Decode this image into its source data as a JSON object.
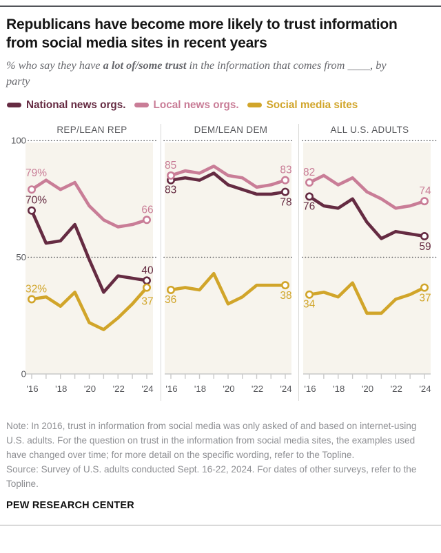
{
  "header": {
    "title": "Republicans have become more likely to trust information from social media sites in recent years",
    "subtitle": {
      "pre": "% who say they have ",
      "bold": "a lot of/some trust",
      "post": " in the information that comes from ____, by party"
    }
  },
  "legend": [
    {
      "label": "National news orgs.",
      "color": "#652b42"
    },
    {
      "label": "Local news orgs.",
      "color": "#c97d97"
    },
    {
      "label": "Social media sites",
      "color": "#d1a52a"
    }
  ],
  "chart_data": {
    "type": "line",
    "years": [
      "'16",
      "'17",
      "'18",
      "'19",
      "'20",
      "'21",
      "'22",
      "'23",
      "'24"
    ],
    "x_tick_labels": [
      "'16",
      "'18",
      "'20",
      "'22",
      "'24"
    ],
    "ylim": [
      0,
      100
    ],
    "yticks": [
      100,
      50,
      0
    ],
    "grid": "dotted horizontal lines at 100 and 50",
    "plot_bg": "#f7f4ed",
    "colors": {
      "national": "#652b42",
      "local": "#c97d97",
      "social": "#d1a52a"
    },
    "panels": [
      {
        "title": "REP/LEAN REP",
        "series": [
          {
            "name": "National news orgs.",
            "color": "#652b42",
            "values": [
              70,
              56,
              57,
              64,
              49,
              35,
              42,
              41,
              40
            ],
            "start_label": "70%",
            "end_label": "40",
            "start_pos": "above",
            "end_pos": "above"
          },
          {
            "name": "Local news orgs.",
            "color": "#c97d97",
            "values": [
              79,
              83,
              79,
              82,
              72,
              66,
              63,
              64,
              66
            ],
            "start_label": "79%",
            "end_label": "66",
            "start_pos": "above",
            "end_pos": "above",
            "start_dy": -19
          },
          {
            "name": "Social media sites",
            "color": "#d1a52a",
            "values": [
              32,
              33,
              29,
              35,
              22,
              19,
              24,
              30,
              37
            ],
            "start_label": "32%",
            "end_label": "37",
            "start_pos": "above",
            "end_pos": "below",
            "end_dy": 25
          }
        ]
      },
      {
        "title": "DEM/LEAN DEM",
        "series": [
          {
            "name": "National news orgs.",
            "color": "#652b42",
            "values": [
              83,
              84,
              83,
              86,
              81,
              79,
              77,
              77,
              78
            ],
            "start_label": "83",
            "end_label": "78",
            "start_pos": "below",
            "end_pos": "below"
          },
          {
            "name": "Local news orgs.",
            "color": "#c97d97",
            "values": [
              85,
              87,
              86,
              89,
              85,
              84,
              80,
              81,
              83
            ],
            "start_label": "85",
            "end_label": "83",
            "start_pos": "above",
            "end_pos": "above"
          },
          {
            "name": "Social media sites",
            "color": "#d1a52a",
            "values": [
              36,
              37,
              36,
              43,
              30,
              33,
              38,
              38,
              38
            ],
            "start_label": "36",
            "end_label": "38",
            "start_pos": "below",
            "end_pos": "below"
          }
        ]
      },
      {
        "title": "ALL U.S. ADULTS",
        "series": [
          {
            "name": "National news orgs.",
            "color": "#652b42",
            "values": [
              76,
              72,
              71,
              75,
              65,
              58,
              61,
              60,
              59
            ],
            "start_label": "76",
            "end_label": "59",
            "start_pos": "below",
            "end_pos": "below"
          },
          {
            "name": "Local news orgs.",
            "color": "#c97d97",
            "values": [
              82,
              85,
              81,
              84,
              78,
              75,
              71,
              72,
              74
            ],
            "start_label": "82",
            "end_label": "74",
            "start_pos": "above",
            "end_pos": "above"
          },
          {
            "name": "Social media sites",
            "color": "#d1a52a",
            "values": [
              34,
              35,
              33,
              39,
              26,
              26,
              32,
              34,
              37
            ],
            "start_label": "34",
            "end_label": "37",
            "start_pos": "below",
            "end_pos": "below"
          }
        ]
      }
    ]
  },
  "notes": {
    "note": "Note: In 2016, trust in information from social media was only asked of and based on internet-using U.S. adults. For the question on trust in the information from social media sites, the examples used have changed over time; for more detail on the specific wording, refer to the Topline.",
    "source": "Source: Survey of U.S. adults conducted Sept. 16-22, 2024. For dates of other surveys, refer to the Topline.",
    "footer": "PEW RESEARCH CENTER"
  }
}
